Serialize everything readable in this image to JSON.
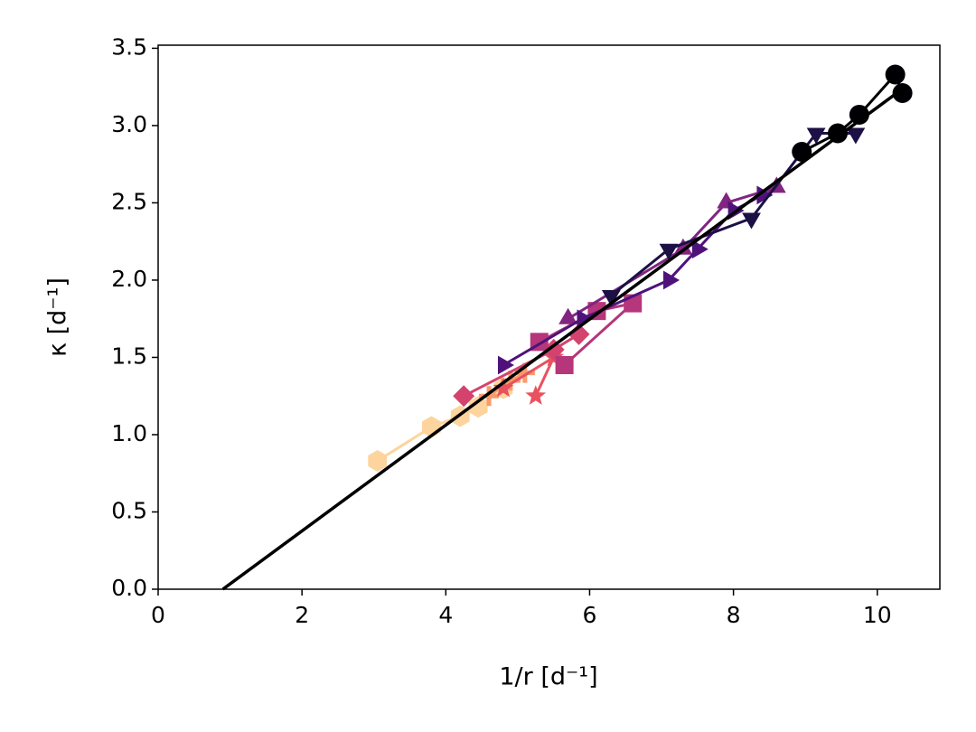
{
  "chart_data": {
    "type": "scatter",
    "xlabel": "1/r [d⁻¹]",
    "ylabel": "κ  [d⁻¹]",
    "xlim": [
      0,
      10.87
    ],
    "ylim": [
      0,
      3.52
    ],
    "xticks": [
      0,
      2,
      4,
      6,
      8,
      10
    ],
    "yticks": [
      {
        "value": 0,
        "label": "0.0"
      },
      0.5,
      {
        "value": 1,
        "label": "1.0"
      },
      1.5,
      {
        "value": 2,
        "label": "2.0"
      },
      2.5,
      {
        "value": 3,
        "label": "3.0"
      },
      3.5
    ],
    "series": [
      {
        "color": "#fdd49e",
        "marker": "hexagon",
        "x": [
          3.05,
          3.8,
          4.2,
          4.45,
          4.8
        ],
        "y": [
          0.83,
          1.05,
          1.12,
          1.18,
          1.3
        ]
      },
      {
        "color": "#fb9a6a",
        "marker": "plus",
        "x": [
          4.6,
          4.9,
          5.1
        ],
        "y": [
          1.25,
          1.35,
          1.4
        ]
      },
      {
        "color": "#e8525f",
        "marker": "star",
        "x": [
          4.8,
          5.5,
          5.25
        ],
        "y": [
          1.3,
          1.5,
          1.25
        ]
      },
      {
        "color": "#d3436e",
        "marker": "diamond",
        "x": [
          4.25,
          5.5,
          5.85
        ],
        "y": [
          1.25,
          1.55,
          1.65
        ]
      },
      {
        "color": "#b5367a",
        "marker": "square",
        "x": [
          5.3,
          6.1,
          6.6,
          5.65
        ],
        "y": [
          1.6,
          1.8,
          1.85,
          1.45
        ]
      },
      {
        "color": "#812581",
        "marker": "triangle-up",
        "x": [
          5.7,
          7.3,
          7.9,
          8.6
        ],
        "y": [
          1.75,
          2.2,
          2.5,
          2.6
        ]
      },
      {
        "color": "#4f127b",
        "marker": "triangle-right",
        "x": [
          4.8,
          5.9,
          7.1,
          7.5,
          8.0,
          8.4
        ],
        "y": [
          1.45,
          1.75,
          2.0,
          2.2,
          2.45,
          2.55
        ]
      },
      {
        "color": "#1c1044",
        "marker": "triangle-down",
        "x": [
          6.3,
          7.1,
          8.25,
          9.15,
          9.7
        ],
        "y": [
          1.9,
          2.2,
          2.4,
          2.95,
          2.95
        ]
      },
      {
        "color": "#000004",
        "marker": "circle",
        "x": [
          8.95,
          9.45,
          9.75,
          10.25,
          10.35
        ],
        "y": [
          2.83,
          2.95,
          3.07,
          3.33,
          3.21
        ]
      },
      {
        "color": "#000000",
        "marker": "none",
        "x": [
          0.9,
          10.3
        ],
        "y": [
          0,
          3.22
        ]
      }
    ]
  }
}
